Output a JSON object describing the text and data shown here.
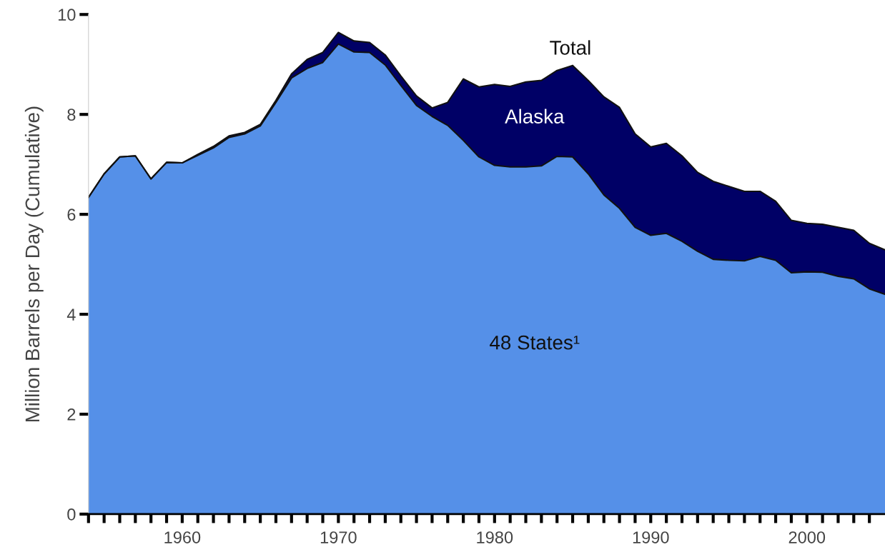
{
  "chart_data": {
    "type": "area",
    "stacked": true,
    "ylabel": "Million Barrels per Day (Cumulative)",
    "x": [
      1954,
      1955,
      1956,
      1957,
      1958,
      1959,
      1960,
      1961,
      1962,
      1963,
      1964,
      1965,
      1966,
      1967,
      1968,
      1969,
      1970,
      1971,
      1972,
      1973,
      1974,
      1975,
      1976,
      1977,
      1978,
      1979,
      1980,
      1981,
      1982,
      1983,
      1984,
      1985,
      1986,
      1987,
      1988,
      1989,
      1990,
      1991,
      1992,
      1993,
      1994,
      1995,
      1996,
      1997,
      1998,
      1999,
      2000,
      2001,
      2002,
      2003,
      2004,
      2005
    ],
    "series": [
      {
        "name": "48 States¹",
        "color": "#5590e8",
        "values": [
          6.34,
          6.81,
          7.15,
          7.17,
          6.71,
          7.04,
          7.03,
          7.18,
          7.33,
          7.54,
          7.61,
          7.77,
          8.24,
          8.73,
          8.92,
          9.04,
          9.41,
          9.25,
          9.24,
          8.99,
          8.58,
          8.18,
          7.96,
          7.78,
          7.48,
          7.15,
          6.98,
          6.95,
          6.95,
          6.97,
          7.16,
          7.15,
          6.81,
          6.39,
          6.12,
          5.74,
          5.58,
          5.62,
          5.46,
          5.26,
          5.1,
          5.08,
          5.07,
          5.16,
          5.08,
          4.83,
          4.85,
          4.84,
          4.76,
          4.71,
          4.51,
          4.4
        ]
      },
      {
        "name": "Alaska",
        "color": "#000066",
        "values": [
          0,
          0,
          0,
          0,
          0,
          0,
          0,
          0.02,
          0.03,
          0.03,
          0.03,
          0.03,
          0.04,
          0.08,
          0.18,
          0.2,
          0.23,
          0.22,
          0.2,
          0.2,
          0.19,
          0.19,
          0.17,
          0.46,
          1.23,
          1.4,
          1.62,
          1.61,
          1.7,
          1.71,
          1.72,
          1.83,
          1.87,
          1.96,
          2.02,
          1.87,
          1.77,
          1.8,
          1.71,
          1.58,
          1.56,
          1.48,
          1.39,
          1.3,
          1.18,
          1.05,
          0.97,
          0.96,
          0.98,
          0.97,
          0.91,
          0.89
        ]
      }
    ],
    "xlim": [
      1954,
      2005
    ],
    "ylim": [
      0,
      10
    ],
    "xticks": [
      {
        "value": 1954,
        "label": null
      },
      {
        "value": 1955,
        "label": null
      },
      {
        "value": 1956,
        "label": null
      },
      {
        "value": 1957,
        "label": null
      },
      {
        "value": 1958,
        "label": null
      },
      {
        "value": 1959,
        "label": null
      },
      1960,
      {
        "value": 1961,
        "label": null
      },
      {
        "value": 1962,
        "label": null
      },
      {
        "value": 1963,
        "label": null
      },
      {
        "value": 1964,
        "label": null
      },
      {
        "value": 1965,
        "label": null
      },
      {
        "value": 1966,
        "label": null
      },
      {
        "value": 1967,
        "label": null
      },
      {
        "value": 1968,
        "label": null
      },
      {
        "value": 1969,
        "label": null
      },
      1970,
      {
        "value": 1971,
        "label": null
      },
      {
        "value": 1972,
        "label": null
      },
      {
        "value": 1973,
        "label": null
      },
      {
        "value": 1974,
        "label": null
      },
      {
        "value": 1975,
        "label": null
      },
      {
        "value": 1976,
        "label": null
      },
      {
        "value": 1977,
        "label": null
      },
      {
        "value": 1978,
        "label": null
      },
      {
        "value": 1979,
        "label": null
      },
      1980,
      {
        "value": 1981,
        "label": null
      },
      {
        "value": 1982,
        "label": null
      },
      {
        "value": 1983,
        "label": null
      },
      {
        "value": 1984,
        "label": null
      },
      {
        "value": 1985,
        "label": null
      },
      {
        "value": 1986,
        "label": null
      },
      {
        "value": 1987,
        "label": null
      },
      {
        "value": 1988,
        "label": null
      },
      {
        "value": 1989,
        "label": null
      },
      1990,
      {
        "value": 1991,
        "label": null
      },
      {
        "value": 1992,
        "label": null
      },
      {
        "value": 1993,
        "label": null
      },
      {
        "value": 1994,
        "label": null
      },
      {
        "value": 1995,
        "label": null
      },
      {
        "value": 1996,
        "label": null
      },
      {
        "value": 1997,
        "label": null
      },
      {
        "value": 1998,
        "label": null
      },
      {
        "value": 1999,
        "label": null
      },
      2000,
      {
        "value": 2001,
        "label": null
      },
      {
        "value": 2002,
        "label": null
      },
      {
        "value": 2003,
        "label": null
      },
      {
        "value": 2004,
        "label": null
      }
    ],
    "yticks": [
      0,
      2,
      4,
      6,
      8,
      10
    ],
    "annotations": [
      "Total"
    ]
  }
}
